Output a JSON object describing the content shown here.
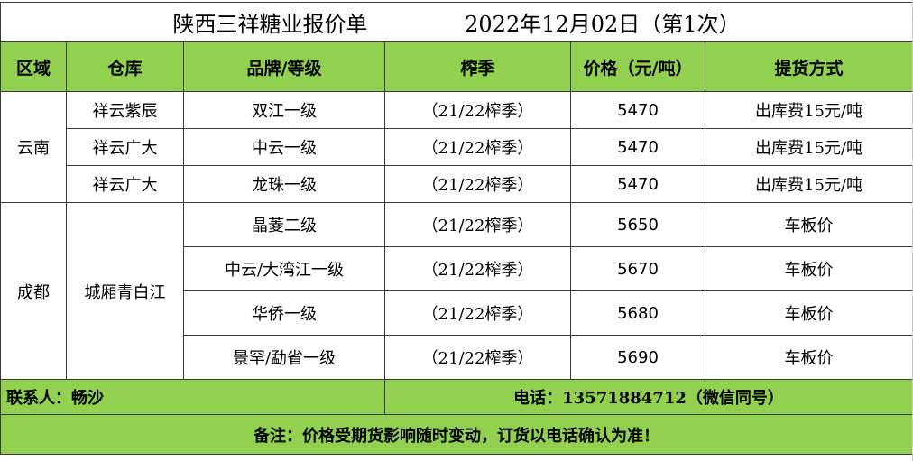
{
  "title": "陕西三祥糖业报价单",
  "date": "2022年12月02日（第1次）",
  "headers": [
    "区域",
    "仓库",
    "品牌/等级",
    "榨季",
    "价格（元/吨）",
    "提货方式"
  ],
  "regions": {
    "yunnan": "云南",
    "chengdu": "成都"
  },
  "yunnan_rows": [
    {
      "warehouse": "祥云紫辰",
      "brand": "双江一级",
      "season": "（21/22榨季）",
      "price": "5470",
      "delivery": "出库费15元/吨"
    },
    {
      "warehouse": "祥云广大",
      "brand": "中云一级",
      "season": "（21/22榨季）",
      "price": "5470",
      "delivery": "出库费15元/吨"
    },
    {
      "warehouse": "祥云广大",
      "brand": "龙珠一级",
      "season": "（21/22榨季）",
      "price": "5470",
      "delivery": "出库费15元/吨"
    }
  ],
  "chengdu_warehouse": "城厢青白江",
  "chengdu_rows": [
    {
      "brand": "晶菱二级",
      "season": "（21/22榨季）",
      "price": "5650",
      "delivery": "车板价"
    },
    {
      "brand": "中云/大湾江一级",
      "season": "（21/22榨季）",
      "price": "5670",
      "delivery": "车板价"
    },
    {
      "brand": "华侨一级",
      "season": "（21/22榨季）",
      "price": "5680",
      "delivery": "车板价"
    },
    {
      "brand": "景罕/勐省一级",
      "season": "（21/22榨季）",
      "price": "5690",
      "delivery": "车板价"
    }
  ],
  "footer": {
    "contact": "联系人：畅沙",
    "phone": "电话：13571884712（微信同号）",
    "note": "备注：价格受期货影响随时变动，订货以电话确认为准！"
  },
  "colors": {
    "header_bg": "#92d050",
    "border": "#3a3a3a"
  }
}
